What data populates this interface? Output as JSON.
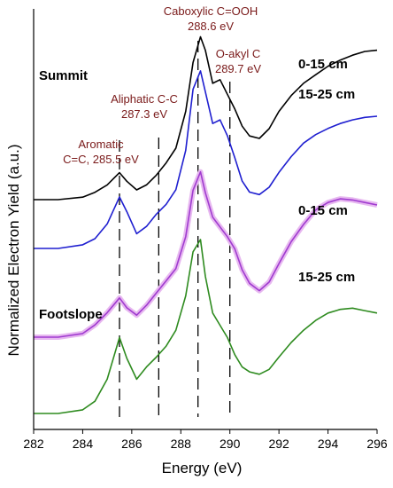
{
  "chart_data": {
    "type": "line",
    "title": "",
    "xlabel": "Energy (eV)",
    "ylabel": "Normalized Electron Yield (a.u.)",
    "xlim": [
      282,
      296
    ],
    "xticks": [
      282,
      284,
      286,
      288,
      290,
      292,
      294,
      296
    ],
    "grid": false,
    "site_labels": [
      "Summit",
      "Footslope"
    ],
    "annotations": [
      {
        "text": [
          "Aromatic",
          "C=C, 285.5 eV"
        ],
        "energy": 285.5
      },
      {
        "text": [
          "Aliphatic C-C",
          "287.3 eV"
        ],
        "energy": 287.3
      },
      {
        "text": [
          "Caboxylic C=OOH",
          "288.6 eV"
        ],
        "energy": 288.6
      },
      {
        "text": [
          "O-akyl C",
          "289.7 eV"
        ],
        "energy": 289.7
      }
    ],
    "reference_lines": [
      285.5,
      287.1,
      288.7,
      290.0
    ],
    "series": [
      {
        "name": "0-15 cm",
        "color": "#000000",
        "x": [
          282.0,
          283.0,
          284.0,
          284.5,
          285.0,
          285.5,
          285.8,
          286.2,
          286.6,
          287.0,
          287.4,
          287.8,
          288.2,
          288.5,
          288.8,
          289.0,
          289.3,
          289.6,
          289.9,
          290.2,
          290.5,
          290.8,
          291.2,
          291.6,
          292.0,
          292.5,
          293.0,
          293.5,
          294.0,
          294.5,
          295.0,
          295.5,
          296.0
        ],
        "y": [
          0.0,
          0.0,
          0.02,
          0.06,
          0.12,
          0.22,
          0.15,
          0.08,
          0.12,
          0.2,
          0.3,
          0.42,
          0.72,
          1.12,
          1.33,
          1.22,
          0.95,
          0.98,
          0.86,
          0.74,
          0.6,
          0.52,
          0.5,
          0.58,
          0.72,
          0.85,
          0.95,
          1.02,
          1.09,
          1.14,
          1.18,
          1.21,
          1.22
        ]
      },
      {
        "name": "15-25 cm",
        "color": "#1f1fd0",
        "x": [
          282.0,
          283.0,
          284.0,
          284.5,
          285.0,
          285.5,
          285.8,
          286.2,
          286.6,
          287.0,
          287.4,
          287.8,
          288.2,
          288.5,
          288.8,
          289.0,
          289.3,
          289.6,
          289.9,
          290.2,
          290.5,
          290.8,
          291.2,
          291.6,
          292.0,
          292.5,
          293.0,
          293.5,
          294.0,
          294.5,
          295.0,
          295.5,
          296.0
        ],
        "y": [
          0.0,
          0.0,
          0.03,
          0.08,
          0.2,
          0.42,
          0.3,
          0.12,
          0.18,
          0.28,
          0.36,
          0.48,
          0.8,
          1.3,
          1.45,
          1.28,
          1.02,
          1.05,
          0.92,
          0.74,
          0.55,
          0.46,
          0.44,
          0.5,
          0.62,
          0.75,
          0.86,
          0.93,
          0.98,
          1.02,
          1.05,
          1.07,
          1.08
        ]
      },
      {
        "name": "0-15 cm",
        "color": "#a03bd0",
        "x": [
          282.0,
          283.0,
          284.0,
          284.5,
          285.0,
          285.5,
          285.8,
          286.2,
          286.6,
          287.0,
          287.4,
          287.8,
          288.2,
          288.5,
          288.8,
          289.0,
          289.3,
          289.6,
          289.9,
          290.2,
          290.5,
          290.8,
          291.2,
          291.6,
          292.0,
          292.5,
          293.0,
          293.5,
          294.0,
          294.5,
          295.0,
          295.5,
          296.0
        ],
        "y": [
          0.0,
          0.0,
          0.03,
          0.1,
          0.2,
          0.32,
          0.24,
          0.18,
          0.26,
          0.36,
          0.46,
          0.56,
          0.82,
          1.2,
          1.35,
          1.18,
          0.98,
          0.9,
          0.82,
          0.72,
          0.55,
          0.44,
          0.38,
          0.45,
          0.6,
          0.78,
          0.92,
          1.04,
          1.1,
          1.13,
          1.12,
          1.1,
          1.08
        ]
      },
      {
        "name": "15-25 cm",
        "color": "#2e8b1f",
        "x": [
          282.0,
          283.0,
          284.0,
          284.5,
          285.0,
          285.5,
          285.8,
          286.2,
          286.6,
          287.0,
          287.4,
          287.8,
          288.2,
          288.5,
          288.8,
          289.0,
          289.3,
          289.6,
          289.9,
          290.2,
          290.5,
          290.8,
          291.2,
          291.6,
          292.0,
          292.5,
          293.0,
          293.5,
          294.0,
          294.5,
          295.0,
          295.5,
          296.0
        ],
        "y": [
          0.0,
          0.0,
          0.03,
          0.1,
          0.28,
          0.62,
          0.45,
          0.28,
          0.38,
          0.46,
          0.55,
          0.68,
          0.96,
          1.32,
          1.42,
          1.12,
          0.82,
          0.72,
          0.62,
          0.48,
          0.38,
          0.34,
          0.32,
          0.36,
          0.46,
          0.58,
          0.68,
          0.76,
          0.82,
          0.85,
          0.86,
          0.84,
          0.82
        ]
      }
    ]
  }
}
